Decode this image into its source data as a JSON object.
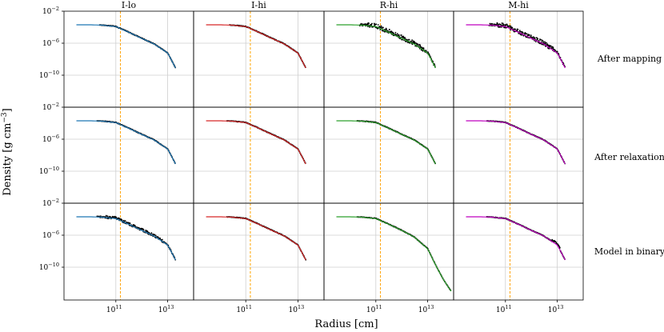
{
  "chart_data": {
    "type": "scatter",
    "xlabel": "Radius [cm]",
    "ylabel": "Density [g cm−3]",
    "x_scale": "log",
    "y_scale": "log",
    "xlim": [
      1000000000.0,
      100000000000000.0
    ],
    "ylim": [
      1e-14,
      0.01
    ],
    "row_ylim_shown": [
      [
        1e-12,
        0.01
      ],
      [
        1e-12,
        0.01
      ],
      [
        1e-14,
        0.01
      ]
    ],
    "grid": true,
    "reference_line": {
      "x": 150000000000.0,
      "color": "#ffa500",
      "style": "dashed"
    },
    "columns": [
      {
        "title": "I-lo",
        "color": "#1f77b4"
      },
      {
        "title": "I-hi",
        "color": "#d62728"
      },
      {
        "title": "R-hi",
        "color": "#2ca02c"
      },
      {
        "title": "M-hi",
        "color": "#bf00bf"
      }
    ],
    "rows": [
      {
        "label": "After mapping"
      },
      {
        "label": "After relaxation"
      },
      {
        "label": "Model in binary"
      }
    ],
    "x_ticks": [
      {
        "base": "10",
        "exp": "11",
        "value": 100000000000.0
      },
      {
        "base": "10",
        "exp": "13",
        "value": 10000000000000.0
      }
    ],
    "y_ticks": [
      {
        "base": "10",
        "exp": "−2",
        "value": 0.01
      },
      {
        "base": "10",
        "exp": "−6",
        "value": 1e-06
      },
      {
        "base": "10",
        "exp": "−10",
        "value": 1e-10
      }
    ],
    "profile": {
      "x": [
        3000000000.0,
        10000000000.0,
        30000000000.0,
        100000000000.0,
        300000000000.0,
        1000000000000.0,
        3000000000000.0,
        10000000000000.0,
        15000000000000.0,
        20000000000000.0
      ],
      "y": [
        0.0002,
        0.0002,
        0.00018,
        0.00012,
        2.5e-05,
        4e-06,
        8e-07,
        6e-08,
        5e-09,
        8e-10
      ]
    },
    "binary_profile": {
      "x": [
        3000000000.0,
        10000000000.0,
        30000000000.0,
        100000000000.0,
        300000000000.0,
        1000000000000.0,
        3000000000000.0,
        10000000000000.0,
        20000000000000.0,
        40000000000000.0,
        80000000000000.0
      ],
      "y": [
        0.0002,
        0.0002,
        0.00018,
        0.00012,
        2.5e-05,
        4e-06,
        6e-07,
        2e-08,
        2e-10,
        3e-12,
        1e-13
      ]
    }
  }
}
